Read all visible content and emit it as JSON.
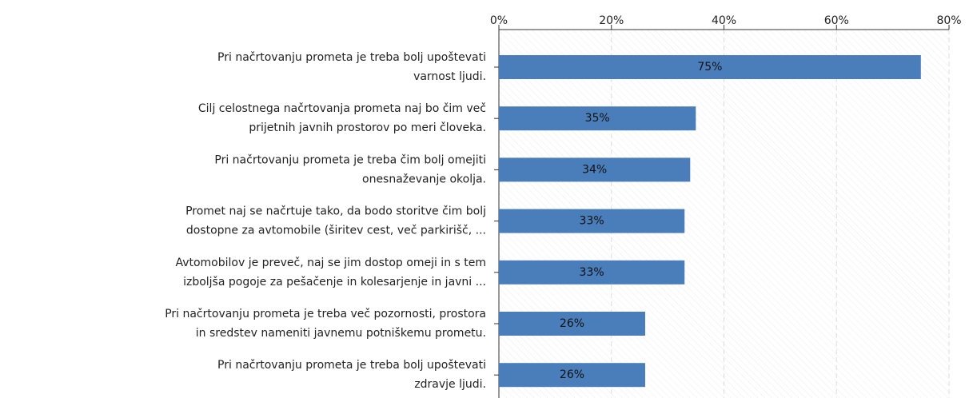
{
  "chart_data": {
    "type": "bar",
    "orientation": "horizontal",
    "categories": [
      "Pri načrtovanju prometa je treba bolj upoštevati\nvarnost ljudi.",
      "Cilj celostnega načrtovanja prometa naj bo čim več\nprijetnih javnih prostorov po meri človeka.",
      "Pri načrtovanju prometa je treba čim bolj omejiti\nonesnaževanje okolja.",
      "Promet naj se načrtuje tako, da bodo storitve čim bolj\ndostopne za avtomobile (širitev cest, več parkirišč, ...",
      "Avtomobilov je preveč, naj se jim dostop omeji in s tem\nizboljša pogoje za pešačenje in kolesarjenje in javni ...",
      "Pri načrtovanju prometa je treba več pozornosti, prostora\nin sredstev nameniti javnemu potniškemu prometu.",
      "Pri načrtovanju prometa je treba bolj upoštevati\nzdravje ljudi."
    ],
    "values": [
      75,
      35,
      34,
      33,
      33,
      26,
      26
    ],
    "value_labels": [
      "75%",
      "35%",
      "34%",
      "33%",
      "33%",
      "26%",
      "26%"
    ],
    "color": "#4a7ebb",
    "xlim": [
      0,
      80
    ],
    "xticks": [
      {
        "value": 0,
        "label": "0%"
      },
      {
        "value": 20,
        "label": "20%"
      },
      {
        "value": 40,
        "label": "40%"
      },
      {
        "value": 60,
        "label": "60%"
      },
      {
        "value": 80,
        "label": "80%"
      }
    ],
    "grid": true
  }
}
